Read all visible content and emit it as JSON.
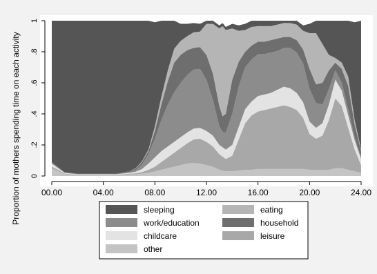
{
  "chart_data": {
    "type": "area",
    "stacked": true,
    "title": "",
    "xlabel": "",
    "ylabel": "Proportion of mothers spending time on each activity",
    "xlim": [
      0,
      24
    ],
    "ylim": [
      0,
      1
    ],
    "x_ticks": [
      0,
      4,
      8,
      12,
      16,
      20,
      24
    ],
    "x_tick_labels": [
      "00.00",
      "04.00",
      "08.00",
      "12.00",
      "16.00",
      "20.00",
      "24.00"
    ],
    "y_ticks": [
      0,
      0.2,
      0.4,
      0.6,
      0.8,
      1
    ],
    "y_tick_labels": [
      "0",
      ".2",
      ".4",
      ".6",
      ".8",
      "1"
    ],
    "grid": false,
    "legend_position": "bottom",
    "legend_columns": 2,
    "x": [
      0,
      0.5,
      1,
      2,
      3,
      4,
      5,
      6,
      6.5,
      7,
      7.5,
      8,
      8.5,
      9,
      9.5,
      10,
      10.5,
      11,
      11.5,
      12,
      12.5,
      13,
      13.25,
      13.5,
      14,
      14.5,
      15,
      15.5,
      16,
      16.5,
      17,
      17.5,
      18,
      18.5,
      19,
      19.5,
      20,
      20.5,
      21,
      21.5,
      22,
      22.5,
      23,
      23.5,
      24
    ],
    "series": [
      {
        "name": "other",
        "color": "#c4c4c4",
        "values": [
          0.05,
          0.03,
          0.01,
          0.005,
          0.005,
          0.005,
          0.005,
          0.01,
          0.01,
          0.015,
          0.02,
          0.03,
          0.04,
          0.05,
          0.06,
          0.07,
          0.08,
          0.085,
          0.08,
          0.07,
          0.06,
          0.04,
          0.035,
          0.03,
          0.03,
          0.035,
          0.04,
          0.04,
          0.045,
          0.045,
          0.045,
          0.045,
          0.045,
          0.045,
          0.045,
          0.045,
          0.04,
          0.04,
          0.04,
          0.04,
          0.05,
          0.05,
          0.04,
          0.03,
          0.02
        ]
      },
      {
        "name": "leisure",
        "color": "#a8a8a8",
        "values": [
          0.01,
          0.01,
          0.005,
          0.003,
          0.003,
          0.003,
          0.003,
          0.005,
          0.007,
          0.01,
          0.02,
          0.03,
          0.05,
          0.07,
          0.09,
          0.11,
          0.13,
          0.15,
          0.16,
          0.15,
          0.13,
          0.1,
          0.09,
          0.08,
          0.1,
          0.2,
          0.3,
          0.35,
          0.37,
          0.38,
          0.39,
          0.4,
          0.41,
          0.4,
          0.38,
          0.33,
          0.23,
          0.2,
          0.22,
          0.32,
          0.45,
          0.4,
          0.27,
          0.14,
          0.05
        ]
      },
      {
        "name": "childcare",
        "color": "#e3e3e3",
        "values": [
          0.02,
          0.01,
          0.005,
          0.003,
          0.003,
          0.003,
          0.003,
          0.005,
          0.01,
          0.02,
          0.04,
          0.06,
          0.07,
          0.07,
          0.07,
          0.07,
          0.07,
          0.07,
          0.07,
          0.07,
          0.07,
          0.06,
          0.06,
          0.06,
          0.07,
          0.08,
          0.09,
          0.09,
          0.1,
          0.1,
          0.1,
          0.11,
          0.12,
          0.12,
          0.11,
          0.1,
          0.08,
          0.07,
          0.08,
          0.1,
          0.12,
          0.1,
          0.08,
          0.06,
          0.04
        ]
      },
      {
        "name": "work/education",
        "color": "#8c8c8c",
        "values": [
          0.005,
          0.003,
          0.002,
          0.002,
          0.002,
          0.002,
          0.002,
          0.005,
          0.01,
          0.03,
          0.06,
          0.12,
          0.2,
          0.27,
          0.32,
          0.35,
          0.37,
          0.38,
          0.38,
          0.33,
          0.23,
          0.12,
          0.1,
          0.11,
          0.2,
          0.26,
          0.27,
          0.27,
          0.27,
          0.26,
          0.26,
          0.25,
          0.25,
          0.26,
          0.26,
          0.25,
          0.21,
          0.16,
          0.12,
          0.1,
          0.06,
          0.05,
          0.04,
          0.02,
          0.01
        ]
      },
      {
        "name": "household",
        "color": "#6e6e6e",
        "values": [
          0.005,
          0.003,
          0.002,
          0.002,
          0.002,
          0.002,
          0.002,
          0.005,
          0.01,
          0.015,
          0.02,
          0.05,
          0.1,
          0.15,
          0.19,
          0.18,
          0.16,
          0.14,
          0.14,
          0.16,
          0.17,
          0.13,
          0.1,
          0.12,
          0.22,
          0.16,
          0.1,
          0.09,
          0.08,
          0.08,
          0.08,
          0.08,
          0.07,
          0.07,
          0.08,
          0.09,
          0.13,
          0.12,
          0.14,
          0.12,
          0.05,
          0.09,
          0.15,
          0.08,
          0.04
        ]
      },
      {
        "name": "eating",
        "color": "#b5b5b5",
        "values": [
          0.0,
          0.0,
          0.0,
          0.0,
          0.0,
          0.0,
          0.0,
          0.0,
          0.003,
          0.005,
          0.01,
          0.03,
          0.05,
          0.07,
          0.09,
          0.09,
          0.09,
          0.1,
          0.1,
          0.2,
          0.32,
          0.5,
          0.58,
          0.54,
          0.33,
          0.2,
          0.14,
          0.12,
          0.1,
          0.1,
          0.09,
          0.09,
          0.09,
          0.09,
          0.1,
          0.12,
          0.23,
          0.33,
          0.25,
          0.1,
          0.03,
          0.04,
          0.06,
          0.03,
          0.01
        ]
      },
      {
        "name": "sleeping",
        "color": "#555555",
        "values": [
          0.91,
          0.944,
          0.976,
          0.985,
          0.985,
          0.985,
          0.985,
          0.97,
          0.95,
          0.905,
          0.83,
          0.67,
          0.49,
          0.32,
          0.18,
          0.11,
          0.08,
          0.06,
          0.05,
          0.03,
          0.02,
          0.02,
          0.02,
          0.02,
          0.03,
          0.035,
          0.04,
          0.04,
          0.035,
          0.035,
          0.035,
          0.025,
          0.015,
          0.015,
          0.025,
          0.035,
          0.06,
          0.08,
          0.15,
          0.22,
          0.24,
          0.27,
          0.36,
          0.63,
          0.83
        ]
      }
    ],
    "legend_order": [
      "sleeping",
      "eating",
      "work/education",
      "household",
      "childcare",
      "leisure",
      "other"
    ]
  }
}
